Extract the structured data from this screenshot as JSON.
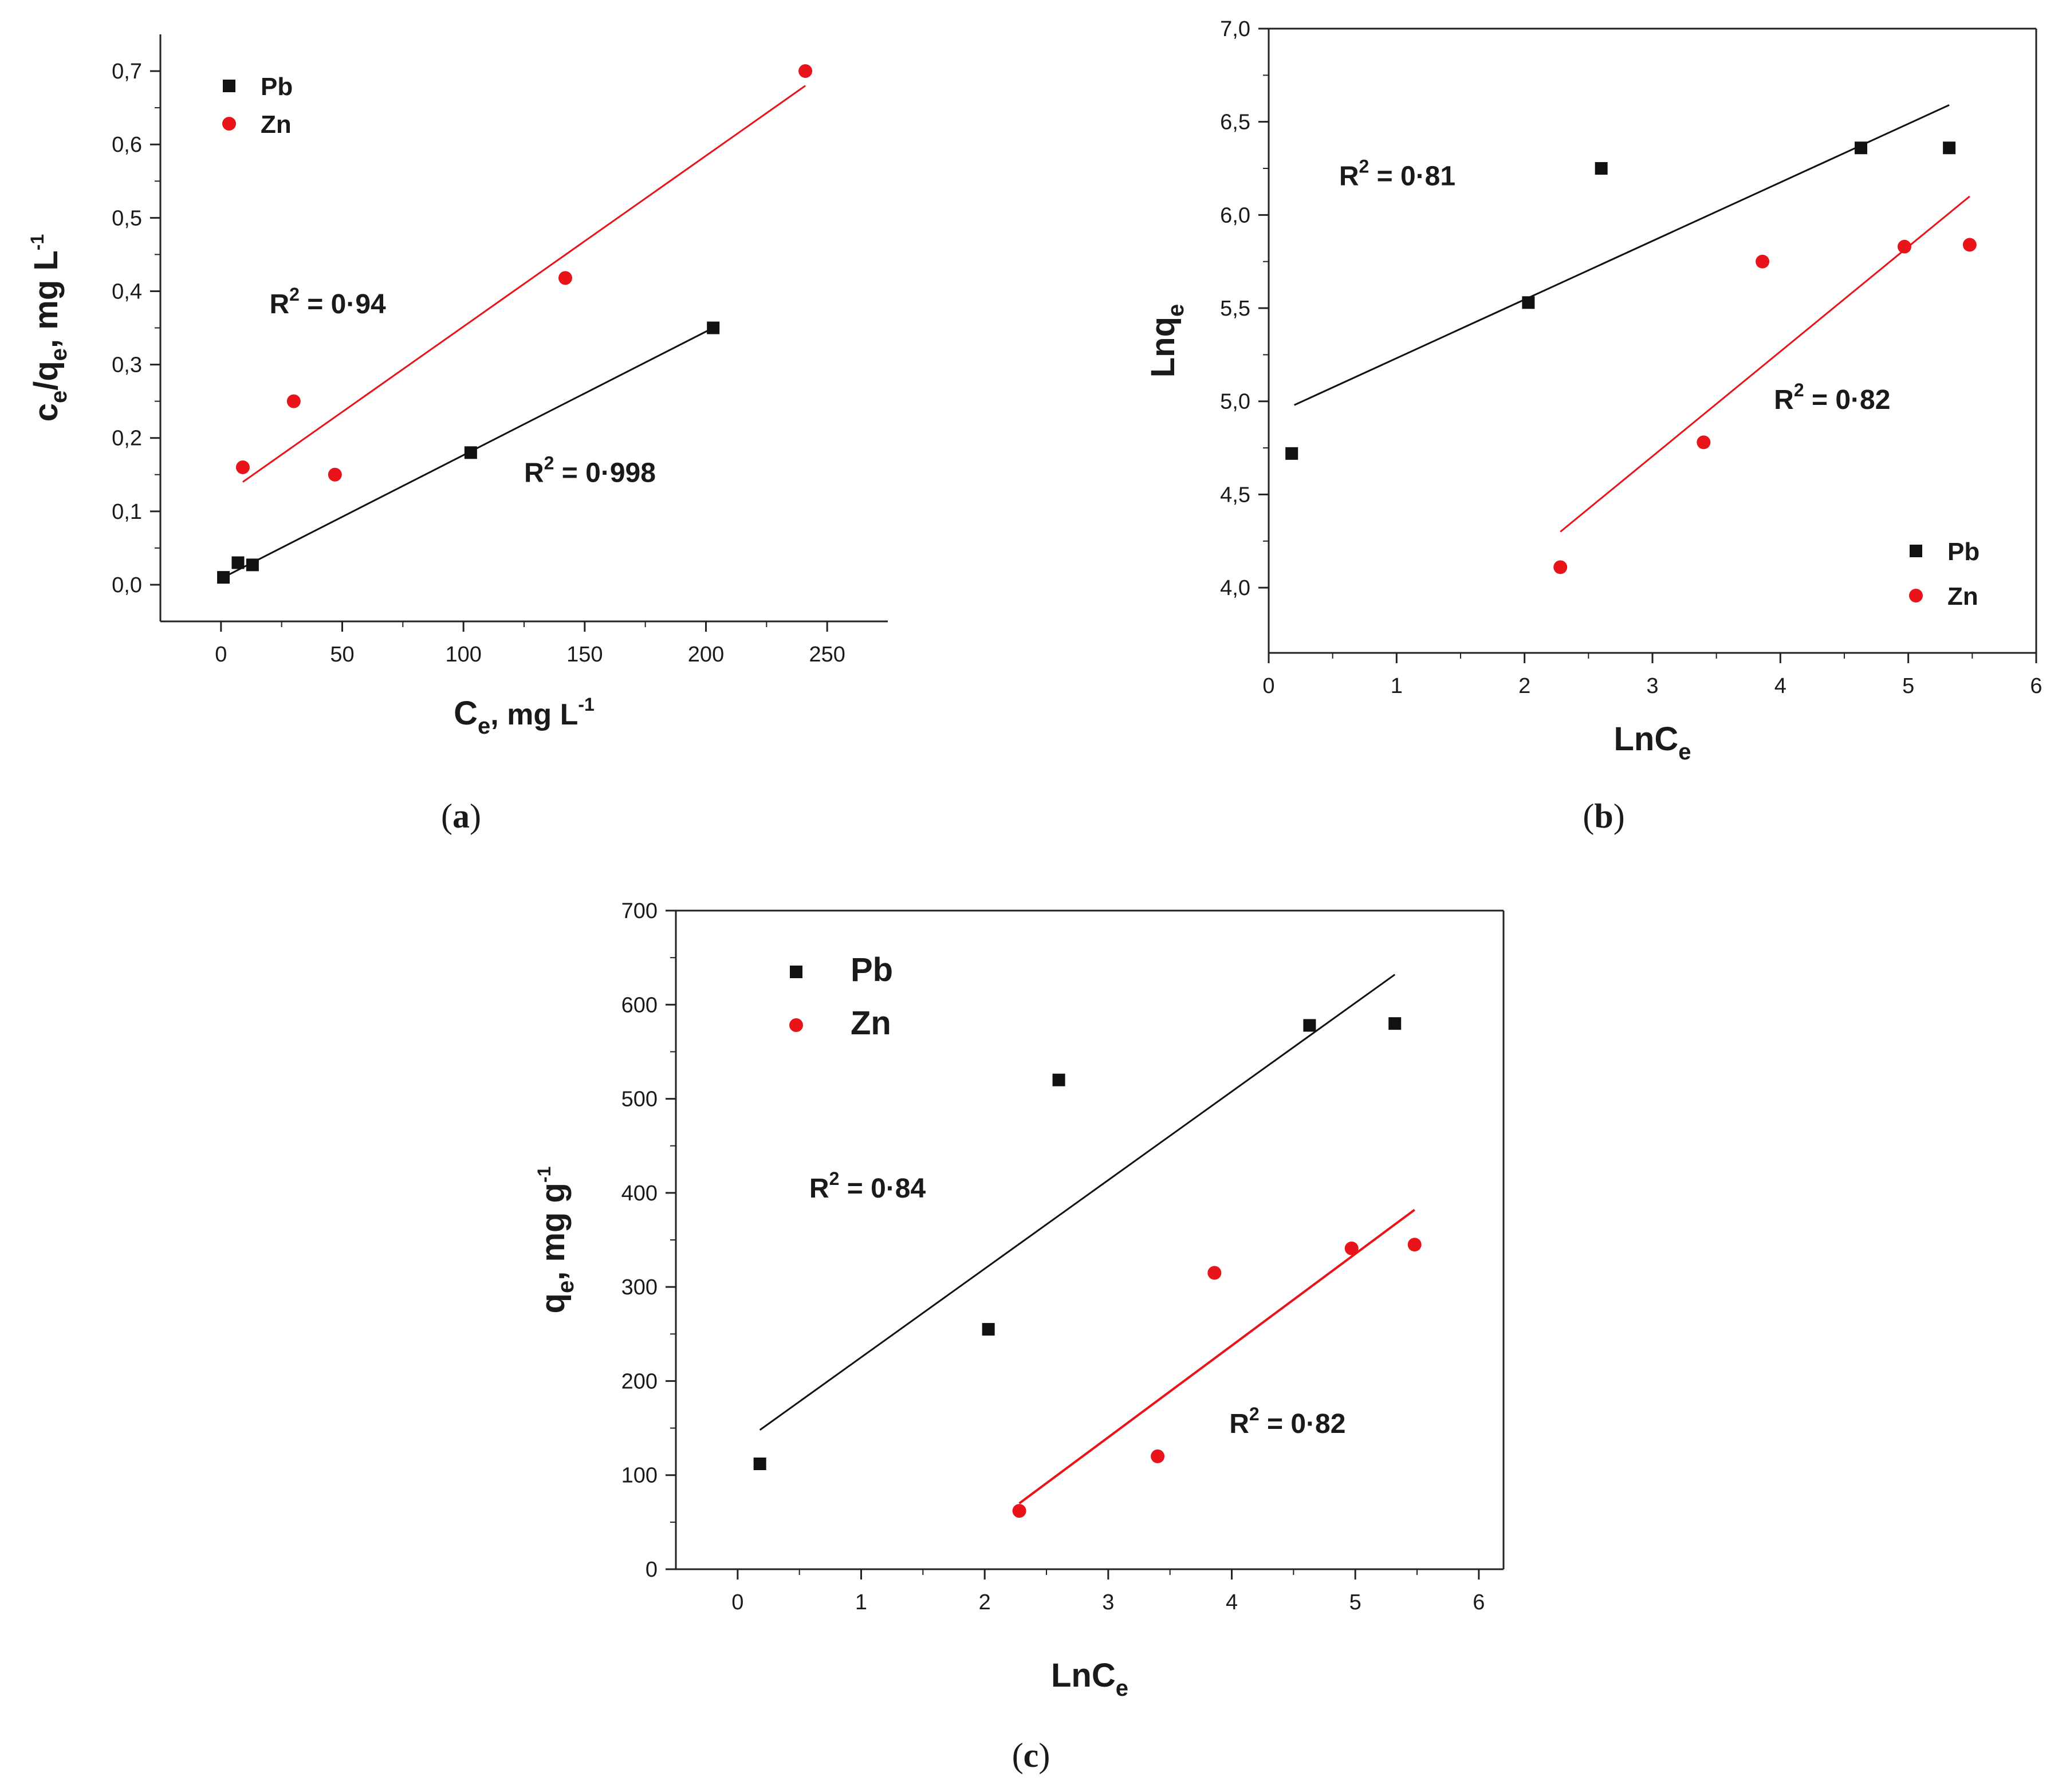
{
  "colors": {
    "pb": "#111111",
    "zn": "#e8141a",
    "axis": "#222222"
  },
  "chart_data": [
    {
      "id": "a",
      "type": "scatter",
      "caption": "a",
      "xlabel": "C",
      "xlabel_sub": "e",
      "xlabel_unit": ", mg L",
      "xlabel_sup": "-1",
      "ylabel": "c",
      "ylabel_sub1": "e",
      "ylabel_mid": "/q",
      "ylabel_sub2": "e",
      "ylabel_unit": ", mg L",
      "ylabel_sup": "-1",
      "xlim": [
        -25,
        275
      ],
      "ylim": [
        -0.05,
        0.75
      ],
      "xticks": [
        0,
        50,
        100,
        150,
        200,
        250
      ],
      "xtick_labels": [
        "0",
        "50",
        "100",
        "150",
        "200",
        "250"
      ],
      "yticks": [
        0.0,
        0.1,
        0.2,
        0.3,
        0.4,
        0.5,
        0.6,
        0.7
      ],
      "ytick_labels": [
        "0,0",
        "0,1",
        "0,2",
        "0,3",
        "0,4",
        "0,5",
        "0,6",
        "0,7"
      ],
      "legend": [
        "Pb",
        "Zn"
      ],
      "series": [
        {
          "name": "Pb",
          "marker": "square",
          "color": "#111111",
          "x": [
            1,
            7,
            13,
            103,
            203
          ],
          "y": [
            0.01,
            0.03,
            0.027,
            0.18,
            0.35
          ],
          "fit": {
            "x": [
              1,
              203
            ],
            "y": [
              0.01,
              0.35
            ]
          }
        },
        {
          "name": "Zn",
          "marker": "circle",
          "color": "#e8141a",
          "x": [
            9,
            30,
            47,
            142,
            241
          ],
          "y": [
            0.16,
            0.25,
            0.15,
            0.418,
            0.7
          ],
          "fit": {
            "x": [
              9,
              241
            ],
            "y": [
              0.14,
              0.68
            ]
          }
        }
      ],
      "annotations": [
        {
          "pre": "R",
          "sup": "2",
          "post": " = 0·94",
          "x": 20,
          "y": 0.37,
          "color": "#111111"
        },
        {
          "pre": "R",
          "sup": "2",
          "post": " = 0·998",
          "x": 125,
          "y": 0.14,
          "color": "#111111"
        }
      ]
    },
    {
      "id": "b",
      "type": "scatter",
      "caption": "b",
      "xlabel": "LnC",
      "xlabel_sub": "e",
      "ylabel": "Lnq",
      "ylabel_sub": "e",
      "xlim": [
        0,
        6
      ],
      "ylim": [
        3.65,
        7.0
      ],
      "xticks": [
        0,
        1,
        2,
        3,
        4,
        5,
        6
      ],
      "xtick_labels": [
        "0",
        "1",
        "2",
        "3",
        "4",
        "5",
        "6"
      ],
      "yticks": [
        4.0,
        4.5,
        5.0,
        5.5,
        6.0,
        6.5,
        7.0
      ],
      "ytick_labels": [
        "4,0",
        "4,5",
        "5,0",
        "5,5",
        "6,0",
        "6,5",
        "7,0"
      ],
      "legend": [
        "Pb",
        "Zn"
      ],
      "series": [
        {
          "name": "Pb",
          "marker": "square",
          "color": "#111111",
          "x": [
            0.18,
            2.03,
            2.6,
            4.63,
            5.32
          ],
          "y": [
            4.72,
            5.53,
            6.25,
            6.36,
            6.36
          ],
          "fit": {
            "x": [
              0.2,
              5.32
            ],
            "y": [
              4.98,
              6.59
            ]
          }
        },
        {
          "name": "Zn",
          "marker": "circle",
          "color": "#e8141a",
          "x": [
            2.28,
            3.4,
            3.86,
            4.97,
            5.48
          ],
          "y": [
            4.11,
            4.78,
            5.75,
            5.83,
            5.84
          ],
          "fit": {
            "x": [
              2.28,
              5.48
            ],
            "y": [
              4.3,
              6.1
            ]
          }
        }
      ],
      "annotations": [
        {
          "pre": "R",
          "sup": "2",
          "post": " = 0·81",
          "x": 0.55,
          "y": 6.16,
          "color": "#111111"
        },
        {
          "pre": "R",
          "sup": "2",
          "post": " = 0·82",
          "x": 3.95,
          "y": 4.96,
          "color": "#111111"
        }
      ]
    },
    {
      "id": "c",
      "type": "scatter",
      "caption": "c",
      "xlabel": "LnC",
      "xlabel_sub": "e",
      "ylabel": "q",
      "ylabel_sub": "e",
      "ylabel_unit": ", mg g",
      "ylabel_sup": "-1",
      "xlim": [
        -0.5,
        6.2
      ],
      "ylim": [
        0,
        700
      ],
      "xticks": [
        0,
        1,
        2,
        3,
        4,
        5,
        6
      ],
      "xtick_labels": [
        "0",
        "1",
        "2",
        "3",
        "4",
        "5",
        "6"
      ],
      "yticks": [
        0,
        100,
        200,
        300,
        400,
        500,
        600,
        700
      ],
      "ytick_labels": [
        "0",
        "100",
        "200",
        "300",
        "400",
        "500",
        "600",
        "700"
      ],
      "legend": [
        "Pb",
        "Zn"
      ],
      "series": [
        {
          "name": "Pb",
          "marker": "square",
          "color": "#111111",
          "x": [
            0.18,
            2.03,
            2.6,
            4.63,
            5.32
          ],
          "y": [
            112,
            255,
            520,
            578,
            580
          ],
          "fit": {
            "x": [
              0.18,
              5.32
            ],
            "y": [
              148,
              632
            ]
          }
        },
        {
          "name": "Zn",
          "marker": "circle",
          "color": "#e8141a",
          "x": [
            2.28,
            3.4,
            3.86,
            4.97,
            5.48
          ],
          "y": [
            62,
            120,
            315,
            341,
            345
          ],
          "fit": {
            "x": [
              2.28,
              5.48
            ],
            "y": [
              70,
              382
            ]
          }
        }
      ],
      "annotations": [
        {
          "pre": "R",
          "sup": "2",
          "post": " = 0·84",
          "x": 0.58,
          "y": 395,
          "color": "#111111"
        },
        {
          "pre": "R",
          "sup": "2",
          "post": " = 0·82",
          "x": 3.98,
          "y": 145,
          "color": "#111111"
        }
      ]
    }
  ]
}
